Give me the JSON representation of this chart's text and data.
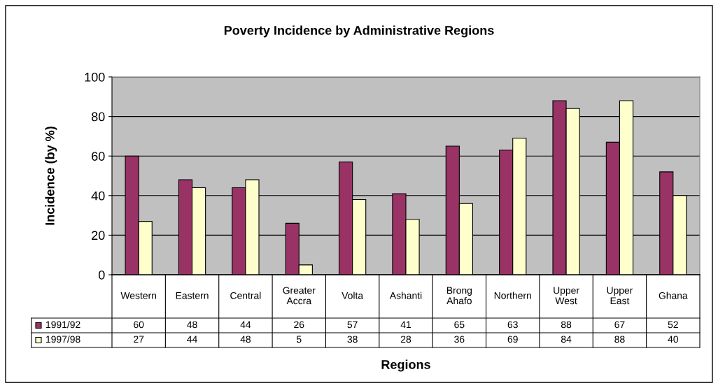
{
  "chart_data": {
    "type": "bar",
    "title": "Poverty Incidence by Administrative Regions",
    "xlabel": "Regions",
    "ylabel": "Incidence (by %)",
    "categories": [
      "Western",
      "Eastern",
      "Central",
      "Greater Accra",
      "Volta",
      "Ashanti",
      "Brong Ahafo",
      "Northern",
      "Upper West",
      "Upper East",
      "Ghana"
    ],
    "series": [
      {
        "name": "1991/92",
        "color": "#993366",
        "values": [
          60,
          48,
          44,
          26,
          57,
          41,
          65,
          63,
          88,
          67,
          52
        ]
      },
      {
        "name": "1997/98",
        "color": "#ffffcc",
        "values": [
          27,
          44,
          48,
          5,
          38,
          28,
          36,
          69,
          84,
          88,
          40
        ]
      }
    ],
    "ylim": [
      0,
      100
    ],
    "yticks": [
      0,
      20,
      40,
      60,
      80,
      100
    ],
    "grid": "y",
    "data_labels": true,
    "legend": "bottom left"
  }
}
